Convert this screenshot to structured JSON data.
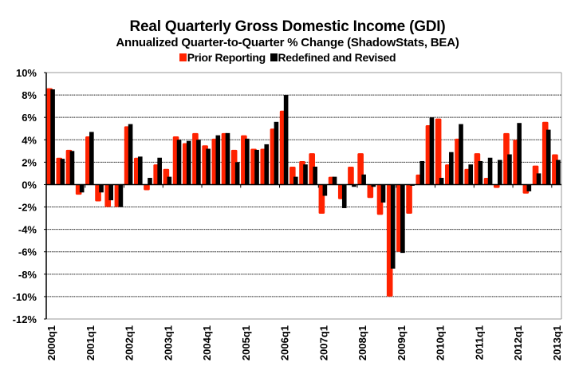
{
  "chart_data": {
    "type": "bar",
    "title": "Real Quarterly Gross Domestic Income (GDI)",
    "subtitle": "Annualized Quarter-to-Quarter % Change (ShadowStats, BEA)",
    "xlabel": "",
    "ylabel": "",
    "ylim": [
      -12,
      10
    ],
    "yticks": [
      10,
      8,
      6,
      4,
      2,
      0,
      -2,
      -4,
      -6,
      -8,
      -10,
      -12
    ],
    "ytick_labels": [
      "10%",
      "8%",
      "6%",
      "4%",
      "2%",
      "0%",
      "-2%",
      "-4%",
      "-6%",
      "-8%",
      "-10%",
      "-12%"
    ],
    "grid": true,
    "legend_position": "top-center",
    "xtick_labels": [
      "2000q1",
      "2001q1",
      "2002q1",
      "2003q1",
      "2004q1",
      "2005q1",
      "2006q1",
      "2007q1",
      "2008q1",
      "2009q1",
      "2010q1",
      "2011q1",
      "2012q1",
      "2013q1"
    ],
    "categories": [
      "2000q1",
      "2000q2",
      "2000q3",
      "2000q4",
      "2001q1",
      "2001q2",
      "2001q3",
      "2001q4",
      "2002q1",
      "2002q2",
      "2002q3",
      "2002q4",
      "2003q1",
      "2003q2",
      "2003q3",
      "2003q4",
      "2004q1",
      "2004q2",
      "2004q3",
      "2004q4",
      "2005q1",
      "2005q2",
      "2005q3",
      "2005q4",
      "2006q1",
      "2006q2",
      "2006q3",
      "2006q4",
      "2007q1",
      "2007q2",
      "2007q3",
      "2007q4",
      "2008q1",
      "2008q2",
      "2008q3",
      "2008q4",
      "2009q1",
      "2009q2",
      "2009q3",
      "2009q4",
      "2010q1",
      "2010q2",
      "2010q3",
      "2010q4",
      "2011q1",
      "2011q2",
      "2011q3",
      "2011q4",
      "2012q1",
      "2012q2",
      "2012q3",
      "2012q4",
      "2013q1"
    ],
    "series": [
      {
        "name": "Prior Reporting",
        "color": "#ff2200",
        "values": [
          8.6,
          2.4,
          3.1,
          -0.9,
          4.3,
          -1.5,
          -2.0,
          -2.0,
          5.2,
          2.4,
          -0.5,
          1.8,
          1.4,
          4.3,
          3.7,
          4.6,
          3.5,
          4.1,
          4.6,
          3.1,
          4.4,
          3.2,
          3.2,
          5.0,
          6.6,
          1.6,
          2.1,
          2.8,
          -2.6,
          0.7,
          -1.3,
          1.6,
          2.8,
          -1.2,
          -2.7,
          -10.0,
          -6.0,
          -2.6,
          0.9,
          5.3,
          5.9,
          1.8,
          4.1,
          1.4,
          2.8,
          0.6,
          -0.3,
          4.6,
          4.0,
          -0.8,
          1.7,
          5.6,
          2.7
        ]
      },
      {
        "name": "Redefined and Revised",
        "color": "#000000",
        "values": [
          8.5,
          2.3,
          3.0,
          -0.7,
          4.7,
          -0.7,
          -1.4,
          -2.0,
          5.4,
          2.5,
          0.6,
          2.4,
          0.7,
          4.0,
          3.9,
          4.0,
          3.2,
          4.4,
          4.6,
          2.0,
          4.1,
          3.1,
          3.6,
          5.6,
          8.0,
          0.7,
          1.8,
          1.6,
          -1.0,
          0.7,
          -2.1,
          -0.2,
          0.9,
          -0.2,
          -1.6,
          -7.5,
          -6.1,
          -0.1,
          2.1,
          6.0,
          0.6,
          2.9,
          5.4,
          1.8,
          2.1,
          2.4,
          2.2,
          2.7,
          5.5,
          -0.6,
          1.0,
          4.9,
          2.2
        ]
      }
    ]
  }
}
